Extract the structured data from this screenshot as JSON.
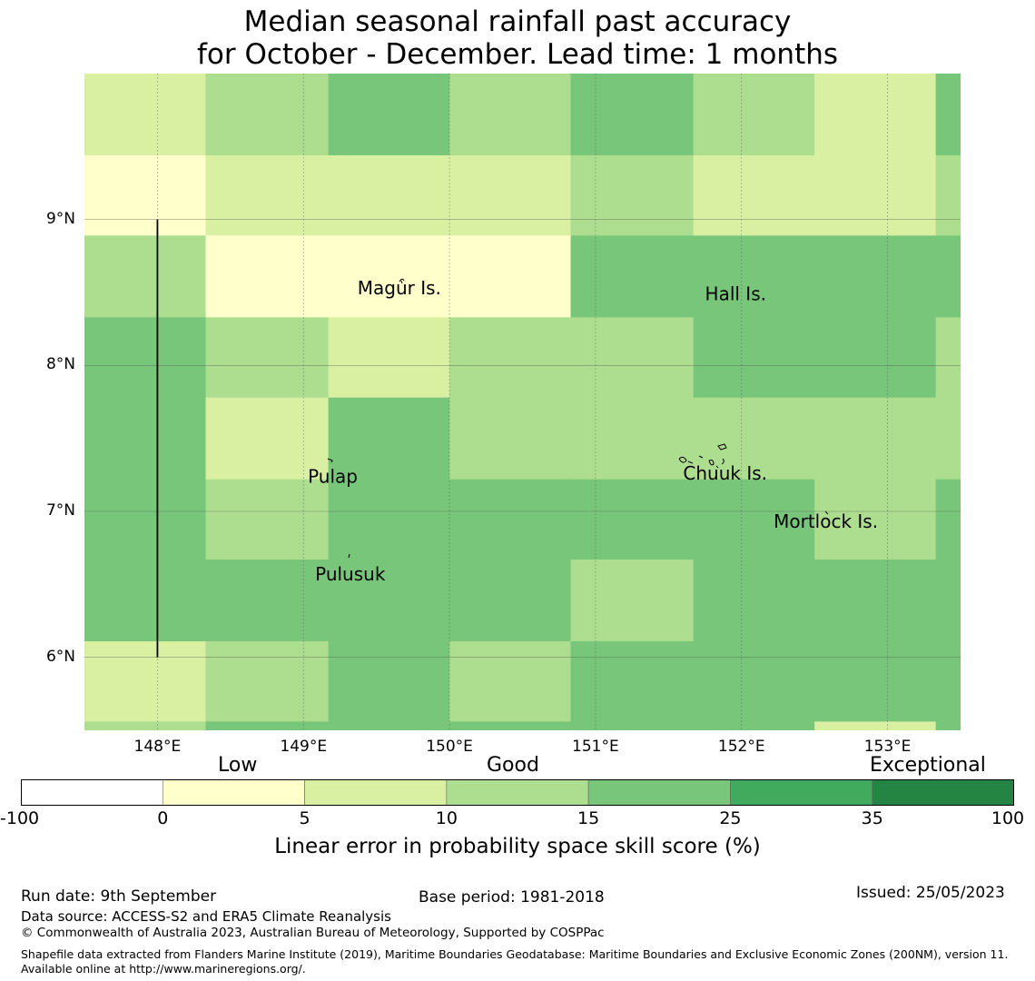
{
  "title": {
    "line1": "Median seasonal rainfall past accuracy",
    "line2": "for October - December. Lead time: 1 months"
  },
  "map": {
    "lon_range": [
      147.5,
      153.5
    ],
    "lat_range": [
      5.5,
      10.0
    ],
    "lon_ticks": [
      {
        "value": 148,
        "label": "148°E"
      },
      {
        "value": 149,
        "label": "149°E"
      },
      {
        "value": 150,
        "label": "150°E"
      },
      {
        "value": 151,
        "label": "151°E"
      },
      {
        "value": 152,
        "label": "152°E"
      },
      {
        "value": 153,
        "label": "153°E"
      }
    ],
    "lat_ticks": [
      {
        "value": 9,
        "label": "9°N"
      },
      {
        "value": 8,
        "label": "8°N"
      },
      {
        "value": 7,
        "label": "7°N"
      },
      {
        "value": 6,
        "label": "6°N"
      }
    ],
    "grid_lines": true,
    "cell_lon_edges": [
      147.5,
      148.33,
      149.17,
      150.0,
      150.83,
      151.67,
      152.5,
      153.33,
      153.5
    ],
    "cell_lat_edges": [
      10.0,
      9.44,
      8.89,
      8.33,
      7.78,
      7.22,
      6.67,
      6.11,
      5.56,
      5.5
    ],
    "skill_class_grid": [
      [
        2,
        3,
        4,
        3,
        4,
        3,
        2,
        4
      ],
      [
        1,
        2,
        2,
        2,
        3,
        2,
        2,
        3
      ],
      [
        3,
        1,
        1,
        1,
        4,
        4,
        4,
        4
      ],
      [
        4,
        3,
        2,
        3,
        3,
        4,
        4,
        3
      ],
      [
        4,
        2,
        4,
        3,
        3,
        3,
        3,
        3
      ],
      [
        4,
        3,
        4,
        4,
        4,
        4,
        3,
        4
      ],
      [
        4,
        4,
        4,
        4,
        3,
        4,
        4,
        4
      ],
      [
        2,
        3,
        4,
        3,
        4,
        4,
        4,
        4
      ],
      [
        3,
        4,
        4,
        4,
        4,
        4,
        2,
        4
      ]
    ],
    "boundary_line": {
      "lon": 148.0,
      "lat_from": 6.0,
      "lat_to": 9.0
    },
    "places": [
      {
        "name": "Magur Is.",
        "lon": 149.37,
        "lat": 8.53
      },
      {
        "name": "Hall Is.",
        "lon": 151.75,
        "lat": 8.49
      },
      {
        "name": "Pulap",
        "lon": 149.03,
        "lat": 7.24
      },
      {
        "name": "Chuuk Is.",
        "lon": 151.6,
        "lat": 7.26
      },
      {
        "name": "Mortlock Is.",
        "lon": 152.22,
        "lat": 6.93
      },
      {
        "name": "Pulusuk",
        "lon": 149.08,
        "lat": 6.57
      }
    ]
  },
  "colorbar": {
    "boundaries": [
      -100,
      0,
      5,
      10,
      15,
      25,
      35,
      100
    ],
    "tick_labels": [
      "-100",
      "0",
      "5",
      "10",
      "15",
      "25",
      "35",
      "100"
    ],
    "colors": [
      "#ffffff",
      "#ffffcc",
      "#d9f0a3",
      "#addd8e",
      "#78c679",
      "#41ab5d",
      "#238443"
    ],
    "categories": [
      "Low",
      "Good",
      "Exceptional"
    ],
    "label": "Linear error in probability space skill score (%)"
  },
  "footer": {
    "run_date": "Run date: 9th September",
    "base_period": "Base period: 1981-2018",
    "issued": "Issued: 25/05/2023",
    "data_source": "Data source: ACCESS-S2 and ERA5 Climate Reanalysis",
    "copyright": "© Commonwealth of Australia 2023, Australian Bureau of Meteorology, Supported by COSPPac",
    "shapefile": "Shapefile data extracted from Flanders Marine Institute (2019), Maritime Boundaries Geodatabase: Maritime Boundaries and Exclusive Economic Zones (200NM), version 11. Available online at http://www.marineregions.org/."
  }
}
